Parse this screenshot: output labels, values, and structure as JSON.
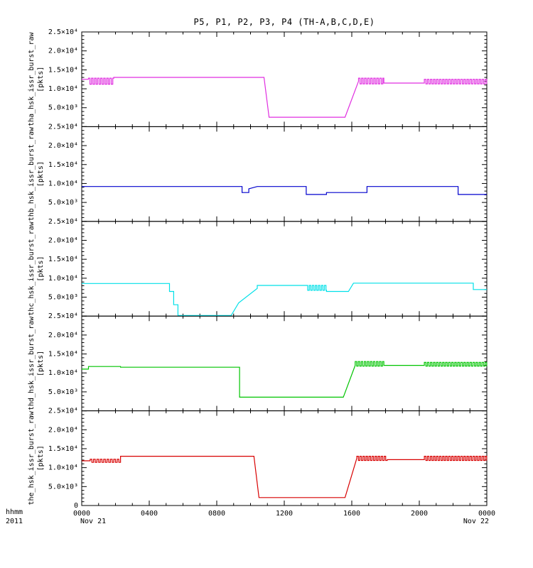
{
  "title": "P5, P1, P2, P3, P4 (TH-A,B,C,D,E)",
  "footer": {
    "left_label_1": "hhmm",
    "left_label_2": "2011",
    "date_left": "Nov 21",
    "date_right": "Nov 22"
  },
  "xaxis": {
    "range": [
      0,
      24
    ],
    "tick_values": [
      0,
      4,
      8,
      12,
      16,
      20,
      24
    ],
    "tick_labels": [
      "0000",
      "0400",
      "0800",
      "1200",
      "1600",
      "2000",
      "0000"
    ],
    "minor_step": 1
  },
  "yaxis": {
    "range": [
      0,
      25000
    ],
    "tick_values": [
      0,
      5000,
      10000,
      15000,
      20000,
      25000
    ],
    "tick_labels": [
      "0",
      "5.0×10³",
      "1.0×10⁴",
      "1.5×10⁴",
      "2.0×10⁴",
      "2.5×10⁴"
    ],
    "minor_step": 1000
  },
  "chart_data": [
    {
      "type": "line",
      "name": "tha",
      "ylabel": "tha_hsk_issr_burst_raw",
      "units": "[pkts]",
      "color": "#E02FE0",
      "ylim": [
        0,
        25000
      ],
      "segments": [
        {
          "mode": "flat",
          "t0": 0.0,
          "t1": 0.4,
          "v": 12500
        },
        {
          "mode": "osc",
          "t0": 0.4,
          "t1": 1.9,
          "lo": 11200,
          "hi": 12800,
          "period": 0.18
        },
        {
          "mode": "flat",
          "t0": 1.9,
          "t1": 10.8,
          "v": 13000
        },
        {
          "mode": "ramp",
          "t0": 10.8,
          "t1": 11.1,
          "v0": 13000,
          "v1": 2500
        },
        {
          "mode": "flat",
          "t0": 11.1,
          "t1": 15.6,
          "v": 2500
        },
        {
          "mode": "ramp",
          "t0": 15.6,
          "t1": 16.4,
          "v0": 2500,
          "v1": 12000
        },
        {
          "mode": "osc",
          "t0": 16.4,
          "t1": 17.9,
          "lo": 11300,
          "hi": 12800,
          "period": 0.18
        },
        {
          "mode": "flat",
          "t0": 17.9,
          "t1": 20.3,
          "v": 11500
        },
        {
          "mode": "osc",
          "t0": 20.3,
          "t1": 24.0,
          "lo": 11300,
          "hi": 12500,
          "period": 0.18
        }
      ]
    },
    {
      "type": "line",
      "name": "thb",
      "ylabel": "thb_hsk_issr_burst_raw",
      "units": "[pkts]",
      "color": "#0000CD",
      "ylim": [
        0,
        25000
      ],
      "segments": [
        {
          "mode": "flat",
          "t0": 0.0,
          "t1": 9.5,
          "v": 9200
        },
        {
          "mode": "flat",
          "t0": 9.5,
          "t1": 9.9,
          "v": 7600
        },
        {
          "mode": "ramp",
          "t0": 9.9,
          "t1": 10.4,
          "v0": 8600,
          "v1": 9200
        },
        {
          "mode": "flat",
          "t0": 10.4,
          "t1": 13.3,
          "v": 9200
        },
        {
          "mode": "flat",
          "t0": 13.3,
          "t1": 14.5,
          "v": 7100
        },
        {
          "mode": "flat",
          "t0": 14.5,
          "t1": 16.9,
          "v": 7600
        },
        {
          "mode": "flat",
          "t0": 16.9,
          "t1": 22.3,
          "v": 9200
        },
        {
          "mode": "flat",
          "t0": 22.3,
          "t1": 24.0,
          "v": 7100
        }
      ]
    },
    {
      "type": "line",
      "name": "thc",
      "ylabel": "thc_hsk_issr_burst_raw",
      "units": "[pkts]",
      "color": "#00E0E8",
      "ylim": [
        0,
        25000
      ],
      "segments": [
        {
          "mode": "flat",
          "t0": 0.0,
          "t1": 5.2,
          "v": 8600
        },
        {
          "mode": "flat",
          "t0": 5.2,
          "t1": 5.45,
          "v": 6500
        },
        {
          "mode": "flat",
          "t0": 5.45,
          "t1": 5.7,
          "v": 3000
        },
        {
          "mode": "flat",
          "t0": 5.7,
          "t1": 8.85,
          "v": 150
        },
        {
          "mode": "ramp",
          "t0": 8.85,
          "t1": 9.3,
          "v0": 150,
          "v1": 3500
        },
        {
          "mode": "ramp",
          "t0": 9.3,
          "t1": 10.4,
          "v0": 3500,
          "v1": 7300
        },
        {
          "mode": "flat",
          "t0": 10.4,
          "t1": 13.3,
          "v": 8100
        },
        {
          "mode": "osc",
          "t0": 13.3,
          "t1": 14.5,
          "lo": 6800,
          "hi": 8100,
          "period": 0.18
        },
        {
          "mode": "flat",
          "t0": 14.5,
          "t1": 15.8,
          "v": 6500
        },
        {
          "mode": "ramp",
          "t0": 15.8,
          "t1": 16.1,
          "v0": 6500,
          "v1": 8700
        },
        {
          "mode": "flat",
          "t0": 16.1,
          "t1": 23.2,
          "v": 8700
        },
        {
          "mode": "flat",
          "t0": 23.2,
          "t1": 24.0,
          "v": 7000
        }
      ]
    },
    {
      "type": "line",
      "name": "thd",
      "ylabel": "thd_hsk_issr_burst_raw",
      "units": "[pkts]",
      "color": "#00C400",
      "ylim": [
        0,
        25000
      ],
      "segments": [
        {
          "mode": "flat",
          "t0": 0.0,
          "t1": 0.4,
          "v": 11000
        },
        {
          "mode": "flat",
          "t0": 0.4,
          "t1": 2.3,
          "v": 11700
        },
        {
          "mode": "flat",
          "t0": 2.3,
          "t1": 9.35,
          "v": 11500
        },
        {
          "mode": "flat",
          "t0": 9.35,
          "t1": 15.5,
          "v": 3600
        },
        {
          "mode": "ramp",
          "t0": 15.5,
          "t1": 16.2,
          "v0": 3600,
          "v1": 12000
        },
        {
          "mode": "osc",
          "t0": 16.2,
          "t1": 17.9,
          "lo": 11800,
          "hi": 13000,
          "period": 0.18
        },
        {
          "mode": "flat",
          "t0": 17.9,
          "t1": 20.3,
          "v": 12000
        },
        {
          "mode": "osc",
          "t0": 20.3,
          "t1": 24.0,
          "lo": 11800,
          "hi": 12800,
          "period": 0.18
        }
      ]
    },
    {
      "type": "line",
      "name": "the",
      "ylabel": "the_hsk_issr_burst_raw",
      "units": "[pkts]",
      "color": "#D80000",
      "ylim": [
        0,
        25000
      ],
      "segments": [
        {
          "mode": "flat",
          "t0": 0.0,
          "t1": 0.5,
          "v": 11800
        },
        {
          "mode": "osc",
          "t0": 0.5,
          "t1": 2.3,
          "lo": 11400,
          "hi": 12200,
          "period": 0.2
        },
        {
          "mode": "flat",
          "t0": 2.3,
          "t1": 10.2,
          "v": 13000
        },
        {
          "mode": "ramp",
          "t0": 10.2,
          "t1": 10.5,
          "v0": 13000,
          "v1": 2100
        },
        {
          "mode": "flat",
          "t0": 10.5,
          "t1": 15.6,
          "v": 2100
        },
        {
          "mode": "ramp",
          "t0": 15.6,
          "t1": 16.3,
          "v0": 2100,
          "v1": 12500
        },
        {
          "mode": "osc",
          "t0": 16.3,
          "t1": 18.1,
          "lo": 11900,
          "hi": 13000,
          "period": 0.18
        },
        {
          "mode": "flat",
          "t0": 18.1,
          "t1": 20.3,
          "v": 12100
        },
        {
          "mode": "osc",
          "t0": 20.3,
          "t1": 24.0,
          "lo": 11900,
          "hi": 13000,
          "period": 0.18
        }
      ]
    }
  ]
}
